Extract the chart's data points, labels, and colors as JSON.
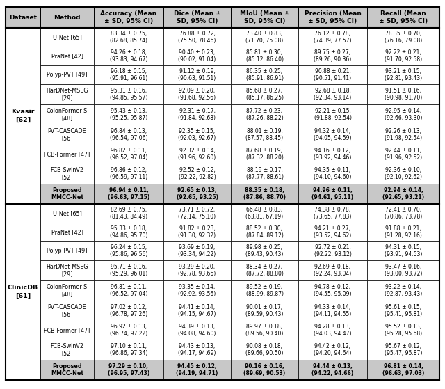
{
  "headers": [
    "Dataset",
    "Method",
    "Accuracy (Mean\n± SD, 95% CI)",
    "Dice (Mean ±\nSD, 95% CI)",
    "MIoU (Mean ±\nSD, 95% CI)",
    "Precision (Mean\n± SD, 95% CI)",
    "Recall (Mean\n± SD, 95% CI)"
  ],
  "kvasir_rows": [
    [
      "U-Net [65]",
      "83.34 ± 0.75,\n(82.68, 85.74)",
      "76.88 ± 0.72,\n(75.50, 78.46)",
      "73.40 ± 0.83,\n(71.70, 75.08)",
      "76.12 ± 0.78,\n(74.39, 77.57)",
      "78.35 ± 0.70,\n(76.16, 79.08)"
    ],
    [
      "PraNet [42]",
      "94.26 ± 0.18,\n(93.83, 94.67)",
      "90.40 ± 0.23,\n(90.02, 91.04)",
      "85.81 ± 0.30,\n(85.12, 86.40)",
      "89.75 ± 0.27,\n(89.26, 90.36)",
      "92.22 ± 0.21,\n(91.70, 92.58)"
    ],
    [
      "Polyp-PVT [49]",
      "96.18 ± 0.15,\n(95.91, 96.61)",
      "91.12 ± 0.19,\n(90.63, 91.51)",
      "86.35 ± 0.25,\n(85.91, 86.91)",
      "90.88 ± 0.21,\n(90.51, 91.41)",
      "93.21 ± 0.15,\n(92.81, 93.43)"
    ],
    [
      "HarDNet-MSEG\n[29]",
      "95.31 ± 0.16,\n(94.85, 95.57)",
      "92.09 ± 0.20,\n(91.68, 92.56)",
      "85.68 ± 0.27,\n(85.17, 86.25)",
      "92.68 ± 0.18,\n(92.34, 93.14)",
      "91.51 ± 0.16,\n(90.98, 91.70)"
    ],
    [
      "ColonFormer-S\n[48]",
      "95.43 ± 0.13,\n(95.25, 95.87)",
      "92.31 ± 0.17,\n(91.84, 92.68)",
      "87.72 ± 0.23,\n(87.26, 88.22)",
      "92.21 ± 0.15,\n(91.88, 92.54)",
      "92.95 ± 0.14,\n(92.66, 93.30)"
    ],
    [
      "PVT-CASCADE\n[56]",
      "96.84 ± 0.13,\n(96.54, 97.06)",
      "92.35 ± 0.15,\n(92.03, 92.67)",
      "88.01 ± 0.19,\n(87.57, 88.45)",
      "94.32 ± 0.14,\n(94.05, 94.59)",
      "92.26 ± 0.13,\n(91.98, 92.54)"
    ],
    [
      "FCB-Former [47]",
      "96.82 ± 0.11,\n(96.52, 97.04)",
      "92.32 ± 0.14,\n(91.96, 92.60)",
      "87.68 ± 0.19,\n(87.32, 88.20)",
      "94.16 ± 0.12,\n(93.92, 94.46)",
      "92.44 ± 0.11,\n(91.96, 92.52)"
    ],
    [
      "FCB-SwinV2\n[52]",
      "96.86 ± 0.12,\n(96.59, 97.11)",
      "92.52 ± 0.12,\n(92.22, 92.82)",
      "88.19 ± 0.17,\n(87.77, 88.61)",
      "94.35 ± 0.11,\n(94.10, 94.60)",
      "92.36 ± 0.10,\n(92.10, 92.62)"
    ],
    [
      "Proposed\nMMCC-Net",
      "96.94 ± 0.11,\n(96.63, 97.15)",
      "92.65 ± 0.13,\n(92.65, 93.25)",
      "88.35 ± 0.18,\n(87.86, 88.70)",
      "94.96 ± 0.11,\n(94.61, 95.11)",
      "92.94 ± 0.14,\n(92.65, 93.21)"
    ]
  ],
  "clinicdb_rows": [
    [
      "U-Net [65]",
      "82.69 ± 0.75,\n(81.43, 84.49)",
      "73.71 ± 0.72,\n(72.14, 75.10)",
      "66.48 ± 0.83,\n(63.81, 67.19)",
      "74.38 ± 0.78,\n(73.65, 77.83)",
      "72.41 ± 0.70,\n(70.86, 73.78)"
    ],
    [
      "PraNet [42]",
      "95.33 ± 0.18,\n(94.86, 95.70)",
      "91.82 ± 0.23,\n(91.30, 92.32)",
      "88.52 ± 0.30,\n(87.84, 89.12)",
      "94.21 ± 0.27,\n(93.52, 94.62)",
      "91.88 ± 0.21,\n(91.28, 92.16)"
    ],
    [
      "Polyp-PVT [49]",
      "96.24 ± 0.15,\n(95.86, 96.56)",
      "93.69 ± 0.19,\n(93.34, 94.22)",
      "89.98 ± 0.25,\n(89.43, 90.43)",
      "92.72 ± 0.21,\n(92.22, 93.12)",
      "94.31 ± 0.15,\n(93.91, 94.53)"
    ],
    [
      "HarDNet-MSEG\n[29]",
      "95.71 ± 0.16,\n(95.29, 96.01)",
      "93.29 ± 0.20,\n(92.78, 93.66)",
      "88.34 ± 0.27,\n(87.72, 88.80)",
      "92.69 ± 0.18,\n(92.24, 93.04)",
      "93.47 ± 0.16,\n(93.00, 93.72)"
    ],
    [
      "ColonFormer-S\n[48]",
      "96.81 ± 0.11,\n(96.52, 97.04)",
      "93.35 ± 0.14,\n(92.92, 93.56)",
      "89.52 ± 0.19,\n(88.99, 89.87)",
      "94.78 ± 0.12,\n(94.55, 95.09)",
      "93.22 ± 0.14,\n(92.87, 93.43)"
    ],
    [
      "PVT-CASCADE\n[56]",
      "97.02 ± 0.12,\n(96.78, 97.26)",
      "94.41 ± 0.14,\n(94.15, 94.67)",
      "90.01 ± 0.17,\n(89.59, 90.43)",
      "94.33 ± 0.14,\n(94.11, 94.55)",
      "95.61 ± 0.15,\n(95.41, 95.81)"
    ],
    [
      "FCB-Former [47]",
      "96.92 ± 0.13,\n(96.74, 97.22)",
      "94.39 ± 0.13,\n(94.08, 94.60)",
      "89.97 ± 0.18,\n(89.56, 90.40)",
      "94.28 ± 0.13,\n(94.03, 94.47)",
      "95.52 ± 0.13,\n(95.28, 95.68)"
    ],
    [
      "FCB-SwinV2\n[52]",
      "97.10 ± 0.11,\n(96.86, 97.34)",
      "94.43 ± 0.13,\n(94.17, 94.69)",
      "90.08 ± 0.18,\n(89.66, 90.50)",
      "94.42 ± 0.12,\n(94.20, 94.64)",
      "95.67 ± 0.12,\n(95.47, 95.87)"
    ],
    [
      "Proposed\nMMCC-Net",
      "97.29 ± 0.10,\n(96.95, 97.43)",
      "94.45 ± 0.12,\n(94.19, 94.71)",
      "90.16 ± 0.16,\n(89.69, 90.53)",
      "94.44 ± 0.13,\n(94.22, 94.66)",
      "96.81 ± 0.14,\n(96.63, 97.03)"
    ]
  ],
  "dataset_labels": [
    "Kvasir\n[62]",
    "ClinicDB\n[61]"
  ],
  "header_bg": "#c8c8c8",
  "proposed_bg": "#c8c8c8",
  "border_color": "#000000",
  "font_size": 5.8,
  "header_font_size": 6.5
}
